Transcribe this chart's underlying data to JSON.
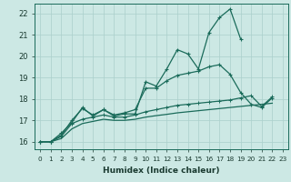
{
  "xlabel": "Humidex (Indice chaleur)",
  "xlim": [
    -0.5,
    23.5
  ],
  "ylim": [
    15.65,
    22.45
  ],
  "xticks": [
    0,
    1,
    2,
    3,
    4,
    5,
    6,
    7,
    8,
    9,
    10,
    11,
    12,
    13,
    14,
    15,
    16,
    17,
    18,
    19,
    20,
    21,
    22,
    23
  ],
  "yticks": [
    16,
    17,
    18,
    19,
    20,
    21,
    22
  ],
  "bg_color": "#cce8e4",
  "grid_color": "#aacfcb",
  "line_color": "#1a6b5a",
  "line1_x": [
    0,
    1,
    2,
    3,
    4,
    5,
    6,
    7,
    8,
    9,
    10,
    11,
    12,
    13,
    14,
    15,
    16,
    17,
    18,
    19
  ],
  "line1_y": [
    16.0,
    16.0,
    16.4,
    16.9,
    17.6,
    17.2,
    17.5,
    17.2,
    17.3,
    17.3,
    18.8,
    18.6,
    19.4,
    20.3,
    20.1,
    19.4,
    21.1,
    21.8,
    22.2,
    20.8
  ],
  "line2_x": [
    0,
    1,
    2,
    3,
    4,
    5,
    6,
    7,
    8,
    9,
    10,
    11,
    12,
    13,
    14,
    15,
    16,
    17,
    18,
    19,
    20,
    21,
    22
  ],
  "line2_y": [
    16.0,
    16.0,
    16.3,
    17.0,
    17.55,
    17.25,
    17.5,
    17.25,
    17.35,
    17.5,
    18.5,
    18.5,
    18.85,
    19.1,
    19.2,
    19.3,
    19.5,
    19.6,
    19.15,
    18.3,
    17.75,
    17.6,
    18.05
  ],
  "line3_x": [
    0,
    1,
    2,
    3,
    4,
    5,
    6,
    7,
    8,
    9,
    10,
    11,
    12,
    13,
    14,
    15,
    16,
    17,
    18,
    19,
    20,
    21,
    22
  ],
  "line3_y": [
    16.0,
    16.0,
    16.25,
    16.85,
    17.05,
    17.15,
    17.25,
    17.15,
    17.15,
    17.25,
    17.4,
    17.5,
    17.6,
    17.7,
    17.75,
    17.8,
    17.85,
    17.9,
    17.95,
    18.05,
    18.15,
    17.65,
    18.1
  ],
  "line4_x": [
    0,
    1,
    2,
    3,
    4,
    5,
    6,
    7,
    8,
    9,
    10,
    11,
    12,
    13,
    14,
    15,
    16,
    17,
    18,
    19,
    20,
    21,
    22
  ],
  "line4_y": [
    16.0,
    16.0,
    16.15,
    16.6,
    16.85,
    16.95,
    17.05,
    17.0,
    17.0,
    17.05,
    17.15,
    17.22,
    17.28,
    17.35,
    17.4,
    17.45,
    17.5,
    17.55,
    17.6,
    17.65,
    17.7,
    17.75,
    17.8
  ]
}
